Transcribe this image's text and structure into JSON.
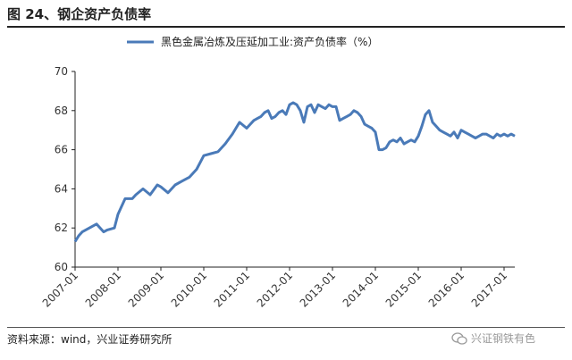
{
  "figure": {
    "label": "图 24、钢企资产负债率",
    "source": "资料来源：wind，兴业证券研究所",
    "watermark": "兴证钢铁有色"
  },
  "colors": {
    "line": "#4a7ab8",
    "axis": "#222222",
    "text": "#222222",
    "watermark": "#9a9a9a"
  },
  "chart_data": {
    "type": "line",
    "legend_position": "top-center",
    "grid": false,
    "ylim": [
      60,
      70
    ],
    "yticks": [
      60,
      62,
      64,
      66,
      68,
      70
    ],
    "xticks": [
      "2007-01",
      "2008-01",
      "2009-01",
      "2010-01",
      "2011-01",
      "2012-01",
      "2013-01",
      "2014-01",
      "2015-01",
      "2016-01",
      "2017-01"
    ],
    "x_start": "2007-01",
    "x_end": "2017-04",
    "series": [
      {
        "name": "黑色金属冶炼及压延加工业:资产负债率（%）",
        "x": [
          "2007-01",
          "2007-02",
          "2007-03",
          "2007-05",
          "2007-07",
          "2007-09",
          "2007-10",
          "2007-12",
          "2008-01",
          "2008-03",
          "2008-05",
          "2008-06",
          "2008-08",
          "2008-10",
          "2008-12",
          "2009-01",
          "2009-03",
          "2009-05",
          "2009-07",
          "2009-09",
          "2009-11",
          "2010-01",
          "2010-03",
          "2010-05",
          "2010-07",
          "2010-09",
          "2010-11",
          "2011-01",
          "2011-02",
          "2011-03",
          "2011-04",
          "2011-05",
          "2011-06",
          "2011-07",
          "2011-08",
          "2011-09",
          "2011-10",
          "2011-11",
          "2011-12",
          "2012-01",
          "2012-02",
          "2012-03",
          "2012-04",
          "2012-05",
          "2012-06",
          "2012-07",
          "2012-08",
          "2012-09",
          "2012-10",
          "2012-11",
          "2012-12",
          "2013-01",
          "2013-02",
          "2013-03",
          "2013-04",
          "2013-05",
          "2013-06",
          "2013-07",
          "2013-08",
          "2013-09",
          "2013-10",
          "2013-11",
          "2013-12",
          "2014-01",
          "2014-02",
          "2014-03",
          "2014-04",
          "2014-05",
          "2014-06",
          "2014-07",
          "2014-08",
          "2014-09",
          "2014-10",
          "2014-11",
          "2014-12",
          "2015-01",
          "2015-02",
          "2015-03",
          "2015-04",
          "2015-05",
          "2015-06",
          "2015-07",
          "2015-08",
          "2015-09",
          "2015-10",
          "2015-11",
          "2015-12",
          "2016-01",
          "2016-02",
          "2016-03",
          "2016-04",
          "2016-05",
          "2016-06",
          "2016-07",
          "2016-08",
          "2016-09",
          "2016-10",
          "2016-11",
          "2016-12",
          "2017-01",
          "2017-02",
          "2017-03",
          "2017-04"
        ],
        "values": [
          61.3,
          61.6,
          61.8,
          62.0,
          62.2,
          61.8,
          61.9,
          62.0,
          62.7,
          63.5,
          63.5,
          63.7,
          64.0,
          63.7,
          64.2,
          64.1,
          63.8,
          64.2,
          64.4,
          64.6,
          65.0,
          65.7,
          65.8,
          65.9,
          66.3,
          66.8,
          67.4,
          67.1,
          67.3,
          67.5,
          67.6,
          67.7,
          67.9,
          68.0,
          67.6,
          67.7,
          67.9,
          68.0,
          67.8,
          68.3,
          68.4,
          68.3,
          68.0,
          67.4,
          68.2,
          68.3,
          67.9,
          68.3,
          68.2,
          68.1,
          68.3,
          68.2,
          68.2,
          67.5,
          67.6,
          67.7,
          67.8,
          68.0,
          67.9,
          67.7,
          67.3,
          67.2,
          67.1,
          66.9,
          66.0,
          66.0,
          66.1,
          66.4,
          66.5,
          66.4,
          66.6,
          66.3,
          66.4,
          66.5,
          66.4,
          66.7,
          67.2,
          67.8,
          68.0,
          67.4,
          67.2,
          67.0,
          66.9,
          66.8,
          66.7,
          66.9,
          66.6,
          67.0,
          66.9,
          66.8,
          66.7,
          66.6,
          66.7,
          66.8,
          66.8,
          66.7,
          66.6,
          66.8,
          66.7,
          66.8,
          66.7,
          66.8,
          66.7
        ]
      }
    ]
  }
}
